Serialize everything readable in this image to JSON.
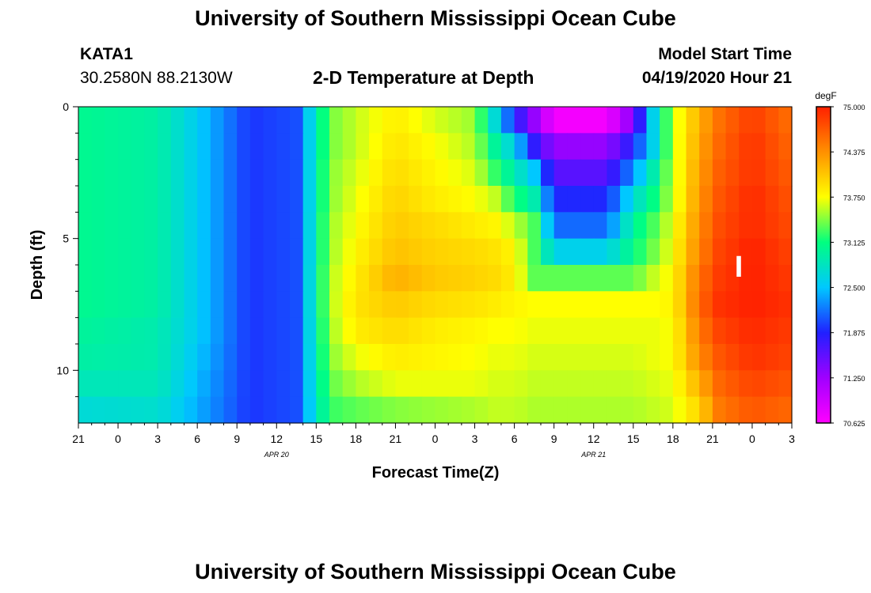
{
  "header": {
    "title": "University of Southern Mississippi Ocean Cube",
    "station": "KATA1",
    "coords": "30.2580N 88.2130W",
    "plot_title": "2-D Temperature at Depth",
    "model_start_label": "Model Start Time",
    "model_start_value": "04/19/2020 Hour 21"
  },
  "footer": {
    "title": "University of Southern Mississippi Ocean Cube"
  },
  "marker": {
    "label": "I"
  },
  "chart_data": {
    "type": "heatmap",
    "title": "2-D Temperature at Depth",
    "xlabel": "Forecast Time(Z)",
    "ylabel": "Depth (ft)",
    "x_tick_labels": [
      "21",
      "0",
      "3",
      "6",
      "9",
      "12",
      "15",
      "18",
      "21",
      "0",
      "3",
      "6",
      "9",
      "12",
      "15",
      "18",
      "21",
      "0",
      "3"
    ],
    "x_hours": [
      0,
      3,
      6,
      9,
      12,
      15,
      18,
      21,
      24,
      27,
      30,
      33,
      36,
      39,
      42,
      45,
      48,
      51,
      54
    ],
    "date_labels": [
      {
        "text": "APR 20",
        "hour": 15
      },
      {
        "text": "APR 21",
        "hour": 39
      }
    ],
    "y_ticks": [
      0,
      5,
      10
    ],
    "y_tick_labels": [
      "0",
      "5",
      "10"
    ],
    "ylim": [
      0,
      12
    ],
    "y_inverted": true,
    "colorbar": {
      "unit": "degF",
      "min": 70.625,
      "max": 75.0,
      "tick_values": [
        75.0,
        74.375,
        73.75,
        73.125,
        72.5,
        71.875,
        71.25,
        70.625
      ],
      "tick_labels": [
        "75.000",
        "74.375",
        "73.750",
        "73.125",
        "72.500",
        "71.875",
        "71.250",
        "70.625"
      ],
      "colors": [
        "#ff00ff",
        "#a000ff",
        "#2020ff",
        "#00c8ff",
        "#00ff80",
        "#ffff00",
        "#ff9000",
        "#ff2000"
      ]
    },
    "grid": false,
    "depth_layers": [
      0.5,
      1.5,
      2.5,
      3.5,
      4.5,
      5.5,
      6.5,
      7.5,
      8.5,
      9.5,
      10.5,
      11.5
    ],
    "column_times": [
      0,
      6,
      9,
      13,
      16.5,
      19,
      21,
      24,
      27,
      30,
      31.5,
      33,
      34.5,
      36,
      38,
      40,
      42,
      43.5,
      45,
      47,
      48.5,
      51,
      54
    ],
    "temperature": [
      [
        73.05,
        72.95,
        72.55,
        71.95,
        72.05,
        73.4,
        73.6,
        73.85,
        73.65,
        73.5,
        72.7,
        71.9,
        71.3,
        70.7,
        70.7,
        70.7,
        71.4,
        72.6,
        73.6,
        74.2,
        74.55,
        74.85,
        74.55
      ],
      [
        73.05,
        72.95,
        72.55,
        71.95,
        72.05,
        73.4,
        73.6,
        73.9,
        73.75,
        73.55,
        73.0,
        72.6,
        71.8,
        71.3,
        71.3,
        71.3,
        71.9,
        72.6,
        73.6,
        74.25,
        74.6,
        74.9,
        74.6
      ],
      [
        73.05,
        72.95,
        72.55,
        71.95,
        72.05,
        73.45,
        73.65,
        73.95,
        73.8,
        73.65,
        73.25,
        72.9,
        72.5,
        71.6,
        71.6,
        71.6,
        72.3,
        72.9,
        73.6,
        74.3,
        74.65,
        74.9,
        74.65
      ],
      [
        73.05,
        72.95,
        72.55,
        71.95,
        72.05,
        73.45,
        73.7,
        74.0,
        73.85,
        73.75,
        73.6,
        73.2,
        72.9,
        71.9,
        71.9,
        71.9,
        72.7,
        73.1,
        73.6,
        74.35,
        74.7,
        74.95,
        74.7
      ],
      [
        73.05,
        72.95,
        72.55,
        71.95,
        72.05,
        73.5,
        73.75,
        74.05,
        73.95,
        73.85,
        73.8,
        73.6,
        73.3,
        72.15,
        72.15,
        72.15,
        73.0,
        73.3,
        73.7,
        74.4,
        74.75,
        74.95,
        74.75
      ],
      [
        73.05,
        72.95,
        72.55,
        71.95,
        72.05,
        73.5,
        73.8,
        74.1,
        74.0,
        73.95,
        73.9,
        73.8,
        73.3,
        72.6,
        72.6,
        72.6,
        73.1,
        73.4,
        73.75,
        74.45,
        74.8,
        75.0,
        74.8
      ],
      [
        73.05,
        72.95,
        72.55,
        71.95,
        72.05,
        73.55,
        73.85,
        74.2,
        74.05,
        74.0,
        73.95,
        73.85,
        73.35,
        73.35,
        73.35,
        73.35,
        73.35,
        73.6,
        73.8,
        74.55,
        74.85,
        75.0,
        74.85
      ],
      [
        73.05,
        72.95,
        72.55,
        71.95,
        72.05,
        73.55,
        73.9,
        74.05,
        73.95,
        73.9,
        73.85,
        73.8,
        73.75,
        73.75,
        73.75,
        73.75,
        73.75,
        73.75,
        73.8,
        74.6,
        74.9,
        75.0,
        74.9
      ],
      [
        73.0,
        72.9,
        72.55,
        71.95,
        72.05,
        73.5,
        73.85,
        73.95,
        73.85,
        73.8,
        73.75,
        73.75,
        73.7,
        73.7,
        73.7,
        73.7,
        73.7,
        73.7,
        73.75,
        74.5,
        74.8,
        74.95,
        74.85
      ],
      [
        72.95,
        72.9,
        72.5,
        71.95,
        72.05,
        73.45,
        73.7,
        73.85,
        73.8,
        73.75,
        73.7,
        73.7,
        73.65,
        73.65,
        73.65,
        73.65,
        73.65,
        73.7,
        73.75,
        74.4,
        74.7,
        74.9,
        74.8
      ],
      [
        72.85,
        72.85,
        72.45,
        71.95,
        72.05,
        73.35,
        73.55,
        73.7,
        73.7,
        73.7,
        73.65,
        73.65,
        73.6,
        73.6,
        73.6,
        73.6,
        73.6,
        73.65,
        73.7,
        74.2,
        74.6,
        74.8,
        74.7
      ],
      [
        72.7,
        72.75,
        72.4,
        71.95,
        72.05,
        73.25,
        73.35,
        73.45,
        73.5,
        73.55,
        73.6,
        73.6,
        73.55,
        73.55,
        73.55,
        73.55,
        73.55,
        73.6,
        73.65,
        74.0,
        74.5,
        74.7,
        74.6
      ]
    ]
  }
}
